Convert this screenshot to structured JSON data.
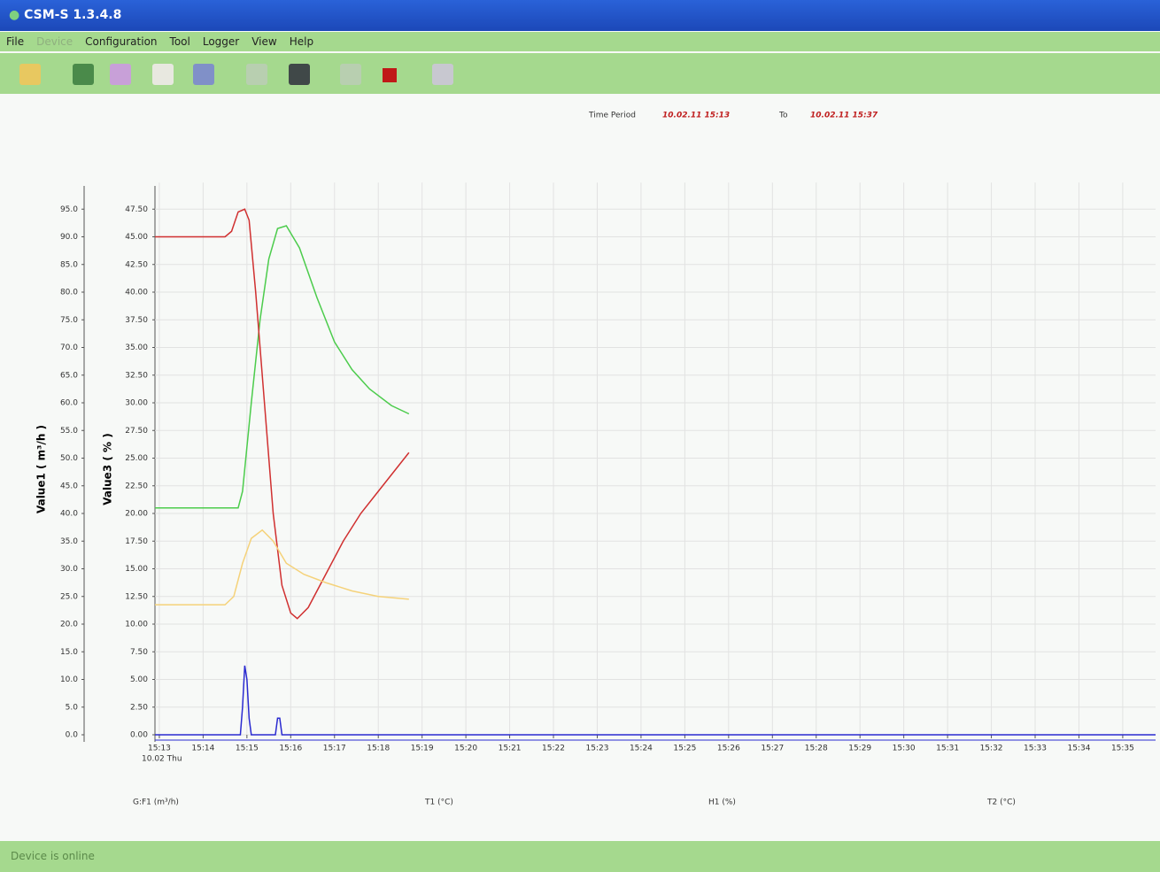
{
  "window": {
    "title": "CSM-S 1.3.4.8",
    "menu": [
      "File",
      "Device",
      "Configuration",
      "Tool",
      "Logger",
      "View",
      "Help"
    ],
    "status": "Device is online"
  },
  "chart_data": {
    "type": "line",
    "period_label": "Time Period",
    "period_from": "10.02.11 15:13",
    "period_to_label": "To",
    "period_to": "10.02.11 15:37",
    "ylabel": "Value1 ( m³/h )",
    "y2label": "Value3 ( % )",
    "x_sublabel": "10.02 Thu",
    "xlim": [
      912.9,
      935.75
    ],
    "xticks": [
      {
        "value": 913,
        "label": "15:13"
      },
      {
        "value": 914,
        "label": "15:14"
      },
      {
        "value": 915,
        "label": "15:15"
      },
      {
        "value": 916,
        "label": "15:16"
      },
      {
        "value": 917,
        "label": "15:17"
      },
      {
        "value": 918,
        "label": "15:18"
      },
      {
        "value": 919,
        "label": "15:19"
      },
      {
        "value": 920,
        "label": "15:20"
      },
      {
        "value": 921,
        "label": "15:21"
      },
      {
        "value": 922,
        "label": "15:22"
      },
      {
        "value": 923,
        "label": "15:23"
      },
      {
        "value": 924,
        "label": "15:24"
      },
      {
        "value": 925,
        "label": "15:25"
      },
      {
        "value": 926,
        "label": "15:26"
      },
      {
        "value": 927,
        "label": "15:27"
      },
      {
        "value": 928,
        "label": "15:28"
      },
      {
        "value": 929,
        "label": "15:29"
      },
      {
        "value": 930,
        "label": "15:30"
      },
      {
        "value": 931,
        "label": "15:31"
      },
      {
        "value": 932,
        "label": "15:32"
      },
      {
        "value": 933,
        "label": "15:33"
      },
      {
        "value": 934,
        "label": "15:34"
      },
      {
        "value": 935,
        "label": "15:35"
      }
    ],
    "ylim": [
      0,
      99
    ],
    "yticks": [
      {
        "value": 0,
        "label": "0.0"
      },
      {
        "value": 5,
        "label": "5.0"
      },
      {
        "value": 10,
        "label": "10.0"
      },
      {
        "value": 15,
        "label": "15.0"
      },
      {
        "value": 20,
        "label": "20.0"
      },
      {
        "value": 25,
        "label": "25.0"
      },
      {
        "value": 30,
        "label": "30.0"
      },
      {
        "value": 35,
        "label": "35.0"
      },
      {
        "value": 40,
        "label": "40.0"
      },
      {
        "value": 45,
        "label": "45.0"
      },
      {
        "value": 50,
        "label": "50.0"
      },
      {
        "value": 55,
        "label": "55.0"
      },
      {
        "value": 60,
        "label": "60.0"
      },
      {
        "value": 65,
        "label": "65.0"
      },
      {
        "value": 70,
        "label": "70.0"
      },
      {
        "value": 75,
        "label": "75.0"
      },
      {
        "value": 80,
        "label": "80.0"
      },
      {
        "value": 85,
        "label": "85.0"
      },
      {
        "value": 90,
        "label": "90.0"
      },
      {
        "value": 95,
        "label": "95.0"
      }
    ],
    "y2lim": [
      0,
      49.5
    ],
    "y2ticks": [
      {
        "value": 0,
        "label": "0.00"
      },
      {
        "value": 2.5,
        "label": "2.50"
      },
      {
        "value": 5,
        "label": "5.00"
      },
      {
        "value": 7.5,
        "label": "7.50"
      },
      {
        "value": 10,
        "label": "10.00"
      },
      {
        "value": 12.5,
        "label": "12.50"
      },
      {
        "value": 15,
        "label": "15.00"
      },
      {
        "value": 17.5,
        "label": "17.50"
      },
      {
        "value": 20,
        "label": "20.00"
      },
      {
        "value": 22.5,
        "label": "22.50"
      },
      {
        "value": 25,
        "label": "25.00"
      },
      {
        "value": 27.5,
        "label": "27.50"
      },
      {
        "value": 30,
        "label": "30.00"
      },
      {
        "value": 32.5,
        "label": "32.50"
      },
      {
        "value": 35,
        "label": "35.00"
      },
      {
        "value": 37.5,
        "label": "37.50"
      },
      {
        "value": 40,
        "label": "40.00"
      },
      {
        "value": 42.5,
        "label": "42.50"
      },
      {
        "value": 45,
        "label": "45.00"
      },
      {
        "value": 47.5,
        "label": "47.50"
      }
    ],
    "grid": true,
    "series": [
      {
        "name": "G:F1 (m³/h)",
        "color": "#2a2ad0",
        "x": [
          912.9,
          914.85,
          914.9,
          914.95,
          915.0,
          915.05,
          915.1,
          915.65,
          915.7,
          915.75,
          915.8,
          935.75
        ],
        "values": [
          0,
          0,
          5,
          12.5,
          10,
          3,
          0,
          0,
          3,
          3,
          0,
          0
        ]
      },
      {
        "name": "T1 (°C)",
        "color": "#4ccc4c",
        "x": [
          912.9,
          914.8,
          914.9,
          915.1,
          915.3,
          915.5,
          915.7,
          915.9,
          916.2,
          916.6,
          917.0,
          917.4,
          917.8,
          918.3,
          918.7
        ],
        "values": [
          41,
          41,
          44,
          60,
          75,
          86,
          91.5,
          92,
          88,
          79,
          71,
          66,
          62.5,
          59.5,
          58
        ]
      },
      {
        "name": "H1 (%)",
        "color": "#d03030",
        "x": [
          912.9,
          914.5,
          914.65,
          914.8,
          914.95,
          915.05,
          915.2,
          915.4,
          915.6,
          915.8,
          916.0,
          916.15,
          916.4,
          916.8,
          917.2,
          917.6,
          918.0,
          918.4,
          918.7
        ],
        "values": [
          90,
          90,
          91,
          94.5,
          95,
          93,
          80,
          60,
          40,
          27,
          22,
          21,
          23,
          29,
          35,
          40,
          44,
          48,
          51
        ]
      },
      {
        "name": "T2 (°C)",
        "color": "#f5d27a",
        "x": [
          912.9,
          914.5,
          914.7,
          914.9,
          915.1,
          915.35,
          915.6,
          915.9,
          916.3,
          916.8,
          917.4,
          918.0,
          918.7
        ],
        "values": [
          23.5,
          23.5,
          25,
          31,
          35.5,
          37,
          35,
          31,
          29,
          27.5,
          26,
          25,
          24.5
        ]
      }
    ]
  }
}
